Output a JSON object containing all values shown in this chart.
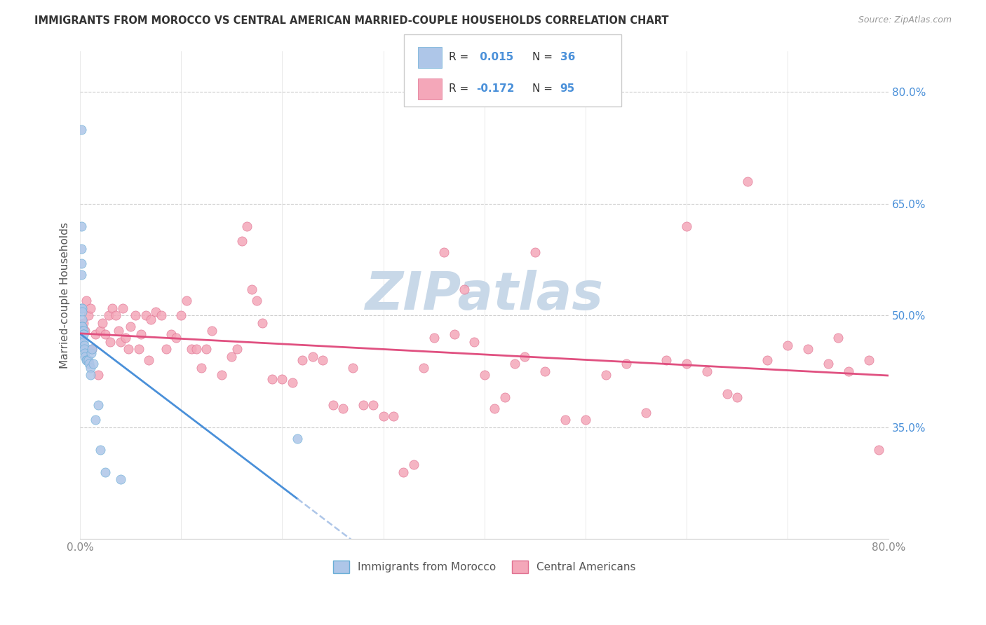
{
  "title": "IMMIGRANTS FROM MOROCCO VS CENTRAL AMERICAN MARRIED-COUPLE HOUSEHOLDS CORRELATION CHART",
  "source": "Source: ZipAtlas.com",
  "ylabel": "Married-couple Households",
  "xlim": [
    0.0,
    0.8
  ],
  "ylim": [
    0.2,
    0.855
  ],
  "right_yticks": [
    0.35,
    0.5,
    0.65,
    0.8
  ],
  "right_ytick_labels": [
    "35.0%",
    "50.0%",
    "65.0%",
    "80.0%"
  ],
  "xtick_labels": [
    "0.0%",
    "80.0%"
  ],
  "xtick_values": [
    0.0,
    0.8
  ],
  "grid_yticks": [
    0.35,
    0.5,
    0.65,
    0.8
  ],
  "grid_xticks": [
    0.0,
    0.1,
    0.2,
    0.3,
    0.4,
    0.5,
    0.6,
    0.7,
    0.8
  ],
  "morocco_color": "#aec6e8",
  "morocco_edge_color": "#6aaed6",
  "central_color": "#f4a7b9",
  "central_edge_color": "#e07090",
  "morocco_R": 0.015,
  "morocco_N": 36,
  "central_R": -0.172,
  "central_N": 95,
  "blue_line_color": "#4a90d9",
  "pink_line_color": "#e05080",
  "blue_dash_color": "#aec6e8",
  "legend_R_color": "#333333",
  "legend_val_color": "#4a90d9",
  "watermark": "ZIPatlas",
  "watermark_color": "#c8d8e8",
  "morocco_x": [
    0.001,
    0.001,
    0.001,
    0.001,
    0.001,
    0.001,
    0.001,
    0.002,
    0.002,
    0.002,
    0.002,
    0.002,
    0.002,
    0.003,
    0.003,
    0.003,
    0.003,
    0.004,
    0.004,
    0.005,
    0.005,
    0.006,
    0.007,
    0.008,
    0.009,
    0.01,
    0.01,
    0.011,
    0.012,
    0.013,
    0.015,
    0.018,
    0.02,
    0.025,
    0.215,
    0.04
  ],
  "morocco_y": [
    0.75,
    0.62,
    0.59,
    0.57,
    0.555,
    0.51,
    0.47,
    0.51,
    0.505,
    0.495,
    0.485,
    0.485,
    0.48,
    0.48,
    0.475,
    0.475,
    0.465,
    0.46,
    0.455,
    0.45,
    0.445,
    0.44,
    0.44,
    0.44,
    0.435,
    0.43,
    0.42,
    0.45,
    0.455,
    0.435,
    0.36,
    0.38,
    0.32,
    0.29,
    0.335,
    0.28
  ],
  "central_x": [
    0.003,
    0.005,
    0.006,
    0.008,
    0.01,
    0.012,
    0.015,
    0.018,
    0.02,
    0.022,
    0.025,
    0.028,
    0.03,
    0.032,
    0.035,
    0.038,
    0.04,
    0.042,
    0.045,
    0.048,
    0.05,
    0.055,
    0.058,
    0.06,
    0.065,
    0.068,
    0.07,
    0.075,
    0.08,
    0.085,
    0.09,
    0.095,
    0.1,
    0.105,
    0.11,
    0.115,
    0.12,
    0.125,
    0.13,
    0.14,
    0.15,
    0.155,
    0.16,
    0.165,
    0.17,
    0.175,
    0.18,
    0.19,
    0.2,
    0.21,
    0.22,
    0.23,
    0.24,
    0.25,
    0.26,
    0.27,
    0.28,
    0.29,
    0.3,
    0.31,
    0.32,
    0.33,
    0.34,
    0.35,
    0.36,
    0.37,
    0.38,
    0.39,
    0.4,
    0.41,
    0.42,
    0.43,
    0.44,
    0.45,
    0.46,
    0.48,
    0.5,
    0.52,
    0.54,
    0.56,
    0.58,
    0.6,
    0.62,
    0.65,
    0.68,
    0.7,
    0.72,
    0.74,
    0.76,
    0.78,
    0.6,
    0.64,
    0.66,
    0.75,
    0.79
  ],
  "central_y": [
    0.49,
    0.48,
    0.52,
    0.5,
    0.51,
    0.455,
    0.475,
    0.42,
    0.48,
    0.49,
    0.475,
    0.5,
    0.465,
    0.51,
    0.5,
    0.48,
    0.465,
    0.51,
    0.47,
    0.455,
    0.485,
    0.5,
    0.455,
    0.475,
    0.5,
    0.44,
    0.495,
    0.505,
    0.5,
    0.455,
    0.475,
    0.47,
    0.5,
    0.52,
    0.455,
    0.455,
    0.43,
    0.455,
    0.48,
    0.42,
    0.445,
    0.455,
    0.6,
    0.62,
    0.535,
    0.52,
    0.49,
    0.415,
    0.415,
    0.41,
    0.44,
    0.445,
    0.44,
    0.38,
    0.375,
    0.43,
    0.38,
    0.38,
    0.365,
    0.365,
    0.29,
    0.3,
    0.43,
    0.47,
    0.585,
    0.475,
    0.535,
    0.465,
    0.42,
    0.375,
    0.39,
    0.435,
    0.445,
    0.585,
    0.425,
    0.36,
    0.36,
    0.42,
    0.435,
    0.37,
    0.44,
    0.435,
    0.425,
    0.39,
    0.44,
    0.46,
    0.455,
    0.435,
    0.425,
    0.44,
    0.62,
    0.395,
    0.68,
    0.47,
    0.32
  ]
}
